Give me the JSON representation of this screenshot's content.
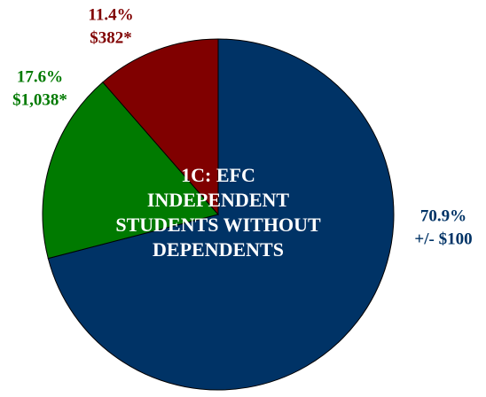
{
  "chart_data": {
    "type": "pie",
    "title": [
      "1C: EFC",
      "INDEPENDENT",
      "STUDENTS WITHOUT",
      "DEPENDENTS"
    ],
    "categories": [
      "+/- $100",
      "$1,038*",
      "$382*"
    ],
    "values": [
      70.9,
      17.6,
      11.4
    ],
    "value_labels": [
      "70.9%",
      "17.6%",
      "11.4%"
    ],
    "colors": [
      "#003366",
      "#007a00",
      "#800000"
    ]
  }
}
